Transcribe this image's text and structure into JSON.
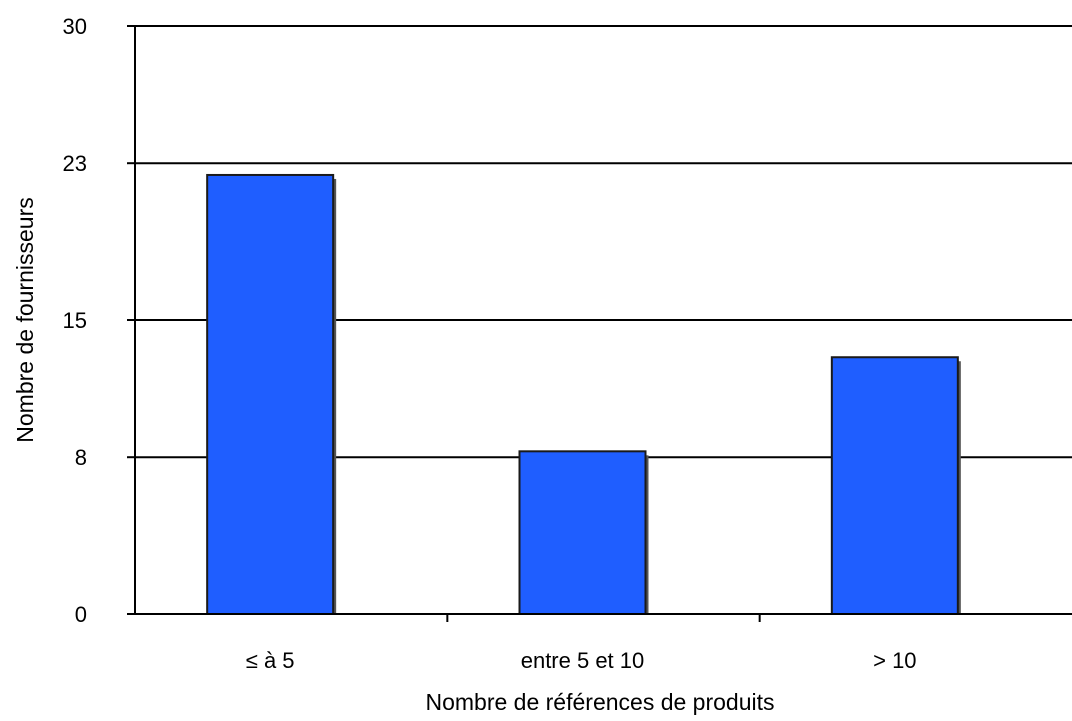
{
  "chart_data": {
    "type": "bar",
    "categories": [
      "≤ à 5",
      "entre 5 et 10",
      "> 10"
    ],
    "values": [
      22.4,
      8.3,
      13.1
    ],
    "xlabel": "Nombre de références de produits",
    "ylabel": "Nombre de fournisseurs",
    "ylim": [
      0,
      30
    ],
    "yticks": [
      0,
      8,
      15,
      23,
      30
    ],
    "ytick_labels": [
      "0",
      "8",
      "15",
      "23",
      "30"
    ],
    "grid": true,
    "bar_color": "#1f5eff"
  }
}
